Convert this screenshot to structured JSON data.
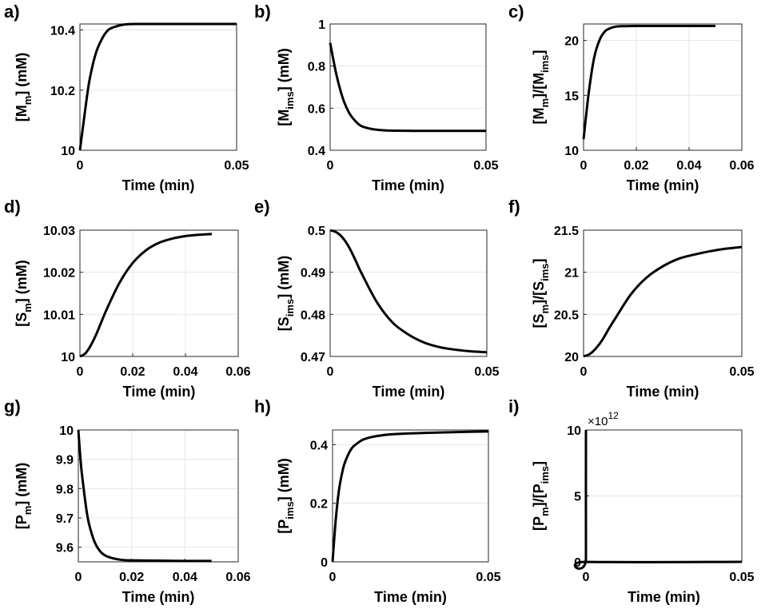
{
  "chart_data": [
    {
      "panel": "a)",
      "type": "line",
      "xlabel": "Time (min)",
      "ylabel": {
        "base": "[M",
        "sub": "m",
        "tail": "] (mM)"
      },
      "xlim": [
        0,
        0.05
      ],
      "ylim": [
        10,
        10.42
      ],
      "xticks": [
        0,
        0.05
      ],
      "xtick_labels": [
        "0",
        "0.05"
      ],
      "yticks": [
        10,
        10.2,
        10.4
      ],
      "ytick_labels": [
        "10",
        "10.2",
        "10.4"
      ],
      "series": [
        {
          "x": [
            0,
            0.0015,
            0.003,
            0.005,
            0.007,
            0.009,
            0.011,
            0.014,
            0.018,
            0.025,
            0.035,
            0.05
          ],
          "y": [
            10.0,
            10.12,
            10.23,
            10.32,
            10.37,
            10.4,
            10.41,
            10.418,
            10.42,
            10.42,
            10.42,
            10.42
          ]
        }
      ]
    },
    {
      "panel": "b)",
      "type": "line",
      "xlabel": "Time (min)",
      "ylabel": {
        "base": "[M",
        "sub": "ims",
        "tail": "] (mM)"
      },
      "xlim": [
        0,
        0.05
      ],
      "ylim": [
        0.4,
        1.0
      ],
      "xticks": [
        0,
        0.05
      ],
      "xtick_labels": [
        "0",
        "0.05"
      ],
      "yticks": [
        0.4,
        0.6,
        0.8,
        1.0
      ],
      "ytick_labels": [
        "0.4",
        "0.6",
        "0.8",
        "1"
      ],
      "series": [
        {
          "x": [
            0,
            0.002,
            0.004,
            0.006,
            0.008,
            0.01,
            0.013,
            0.016,
            0.02,
            0.03,
            0.04,
            0.05
          ],
          "y": [
            0.91,
            0.76,
            0.65,
            0.58,
            0.54,
            0.515,
            0.502,
            0.496,
            0.493,
            0.492,
            0.492,
            0.492
          ]
        }
      ]
    },
    {
      "panel": "c)",
      "type": "line",
      "xlabel": "Time (min)",
      "ylabel": {
        "parts": [
          "[M",
          "m",
          "]/[M",
          "ims",
          "]"
        ]
      },
      "xlim": [
        0,
        0.06
      ],
      "ylim": [
        10,
        21.5
      ],
      "xticks": [
        0,
        0.02,
        0.04,
        0.06
      ],
      "xtick_labels": [
        "0",
        "0.02",
        "0.04",
        "0.06"
      ],
      "yticks": [
        10,
        15,
        20
      ],
      "ytick_labels": [
        "10",
        "15",
        "20"
      ],
      "series": [
        {
          "x": [
            0,
            0.002,
            0.004,
            0.006,
            0.008,
            0.01,
            0.012,
            0.015,
            0.02,
            0.03,
            0.04,
            0.05
          ],
          "y": [
            11.0,
            15.3,
            18.4,
            20.0,
            20.8,
            21.1,
            21.25,
            21.3,
            21.32,
            21.32,
            21.32,
            21.32
          ]
        }
      ]
    },
    {
      "panel": "d)",
      "type": "line",
      "xlabel": "Time (min)",
      "ylabel": {
        "base": "[S",
        "sub": "m",
        "tail": "] (mM)"
      },
      "xlim": [
        0,
        0.06
      ],
      "ylim": [
        10,
        10.03
      ],
      "xticks": [
        0,
        0.02,
        0.04,
        0.06
      ],
      "xtick_labels": [
        "0",
        "0.02",
        "0.04",
        "0.06"
      ],
      "yticks": [
        10,
        10.01,
        10.02,
        10.03
      ],
      "ytick_labels": [
        "10",
        "10.01",
        "10.02",
        "10.03"
      ],
      "series": [
        {
          "x": [
            0,
            0.002,
            0.004,
            0.006,
            0.008,
            0.01,
            0.015,
            0.02,
            0.025,
            0.03,
            0.035,
            0.04,
            0.045,
            0.05
          ],
          "y": [
            10.0,
            10.0007,
            10.0025,
            10.005,
            10.008,
            10.011,
            10.0175,
            10.0222,
            10.0252,
            10.027,
            10.028,
            10.0286,
            10.0289,
            10.0291
          ]
        }
      ]
    },
    {
      "panel": "e)",
      "type": "line",
      "xlabel": "Time (min)",
      "ylabel": {
        "base": "[S",
        "sub": "ims",
        "tail": "] (mM)"
      },
      "xlim": [
        0,
        0.05
      ],
      "ylim": [
        0.47,
        0.5
      ],
      "xticks": [
        0,
        0.05
      ],
      "xtick_labels": [
        "0",
        "0.05"
      ],
      "yticks": [
        0.47,
        0.48,
        0.49,
        0.5
      ],
      "ytick_labels": [
        "0.47",
        "0.48",
        "0.49",
        "0.5"
      ],
      "series": [
        {
          "x": [
            0,
            0.002,
            0.004,
            0.006,
            0.008,
            0.01,
            0.015,
            0.02,
            0.025,
            0.03,
            0.035,
            0.04,
            0.045,
            0.05
          ],
          "y": [
            0.5,
            0.4995,
            0.4982,
            0.496,
            0.493,
            0.4898,
            0.4828,
            0.478,
            0.4752,
            0.4733,
            0.4722,
            0.4716,
            0.4712,
            0.471
          ]
        }
      ]
    },
    {
      "panel": "f)",
      "type": "line",
      "xlabel": "Time (min)",
      "ylabel": {
        "parts": [
          "[S",
          "m",
          "]/[S",
          "ims",
          "]"
        ]
      },
      "xlim": [
        0,
        0.05
      ],
      "ylim": [
        20,
        21.5
      ],
      "xticks": [
        0,
        0.05
      ],
      "xtick_labels": [
        "0",
        "0.05"
      ],
      "yticks": [
        20,
        20.5,
        21,
        21.5
      ],
      "ytick_labels": [
        "20",
        "20.5",
        "21",
        "21.5"
      ],
      "series": [
        {
          "x": [
            0,
            0.002,
            0.004,
            0.006,
            0.008,
            0.01,
            0.015,
            0.02,
            0.025,
            0.03,
            0.035,
            0.04,
            0.045,
            0.05
          ],
          "y": [
            20.0,
            20.03,
            20.1,
            20.2,
            20.33,
            20.45,
            20.74,
            20.94,
            21.07,
            21.16,
            21.21,
            21.25,
            21.28,
            21.3
          ]
        }
      ]
    },
    {
      "panel": "g)",
      "type": "line",
      "xlabel": "Time (min)",
      "ylabel": {
        "base": "[P",
        "sub": "m",
        "tail": "] (mM)"
      },
      "xlim": [
        0,
        0.06
      ],
      "ylim": [
        9.55,
        10.0
      ],
      "xticks": [
        0,
        0.02,
        0.04,
        0.06
      ],
      "xtick_labels": [
        "0",
        "0.02",
        "0.04",
        "0.06"
      ],
      "yticks": [
        9.6,
        9.7,
        9.8,
        9.9,
        10.0
      ],
      "ytick_labels": [
        "9.6",
        "9.7",
        "9.8",
        "9.9",
        "10"
      ],
      "series": [
        {
          "x": [
            0,
            0.001,
            0.002,
            0.003,
            0.004,
            0.006,
            0.008,
            0.01,
            0.013,
            0.016,
            0.02,
            0.03,
            0.04,
            0.05
          ],
          "y": [
            10.0,
            9.88,
            9.8,
            9.73,
            9.68,
            9.62,
            9.588,
            9.572,
            9.562,
            9.557,
            9.555,
            9.554,
            9.553,
            9.553
          ]
        }
      ]
    },
    {
      "panel": "h)",
      "type": "line",
      "xlabel": "Time (min)",
      "ylabel": {
        "base": "[P",
        "sub": "ims",
        "tail": "] (mM)"
      },
      "xlim": [
        0,
        0.05
      ],
      "ylim": [
        0,
        0.45
      ],
      "xticks": [
        0,
        0.05
      ],
      "xtick_labels": [
        "0",
        "0.05"
      ],
      "yticks": [
        0,
        0.2,
        0.4
      ],
      "ytick_labels": [
        "0",
        "0.2",
        "0.4"
      ],
      "series": [
        {
          "x": [
            0,
            0.001,
            0.002,
            0.003,
            0.004,
            0.006,
            0.008,
            0.01,
            0.013,
            0.016,
            0.02,
            0.03,
            0.04,
            0.05
          ],
          "y": [
            0.0,
            0.14,
            0.24,
            0.3,
            0.34,
            0.385,
            0.405,
            0.418,
            0.427,
            0.432,
            0.436,
            0.44,
            0.443,
            0.445
          ]
        }
      ]
    },
    {
      "panel": "i)",
      "type": "line",
      "xlabel": "Time (min)",
      "ylabel": {
        "parts": [
          "[P",
          "m",
          "]/[P",
          "ims",
          "]"
        ]
      },
      "exponent_label": {
        "prefix": "×10",
        "power": "12"
      },
      "xlim": [
        0,
        0.05
      ],
      "ylim": [
        0,
        10
      ],
      "xticks": [
        0,
        0.05
      ],
      "xtick_labels": [
        "0",
        "0.05"
      ],
      "yticks": [
        0,
        5,
        10
      ],
      "ytick_labels": [
        "0",
        "5",
        "10"
      ],
      "series": [
        {
          "x": [
            0,
            0,
            0.0002,
            0.05
          ],
          "y": [
            10,
            0.3,
            0.0,
            0.0
          ]
        }
      ]
    }
  ]
}
